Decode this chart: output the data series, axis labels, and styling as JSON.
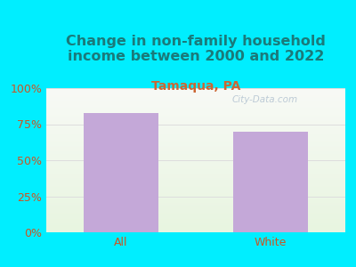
{
  "categories": [
    "All",
    "White"
  ],
  "values": [
    83,
    70
  ],
  "bar_color": "#c4a8d8",
  "background_color": "#00eeff",
  "plot_bg_top": "#f5f8f0",
  "plot_bg_bottom": "#e8f5e0",
  "title": "Change in non-family household\nincome between 2000 and 2022",
  "subtitle": "Tamaqua, PA",
  "title_color": "#1a7a7a",
  "subtitle_color": "#cc6633",
  "tick_label_color": "#cc5522",
  "ylim": [
    0,
    100
  ],
  "yticks": [
    0,
    25,
    50,
    75,
    100
  ],
  "ytick_labels": [
    "0%",
    "25%",
    "50%",
    "75%",
    "100%"
  ],
  "title_fontsize": 11.5,
  "subtitle_fontsize": 10,
  "tick_fontsize": 9,
  "watermark": "City-Data.com",
  "watermark_color": "#aabbcc",
  "grid_color": "#dddddd"
}
